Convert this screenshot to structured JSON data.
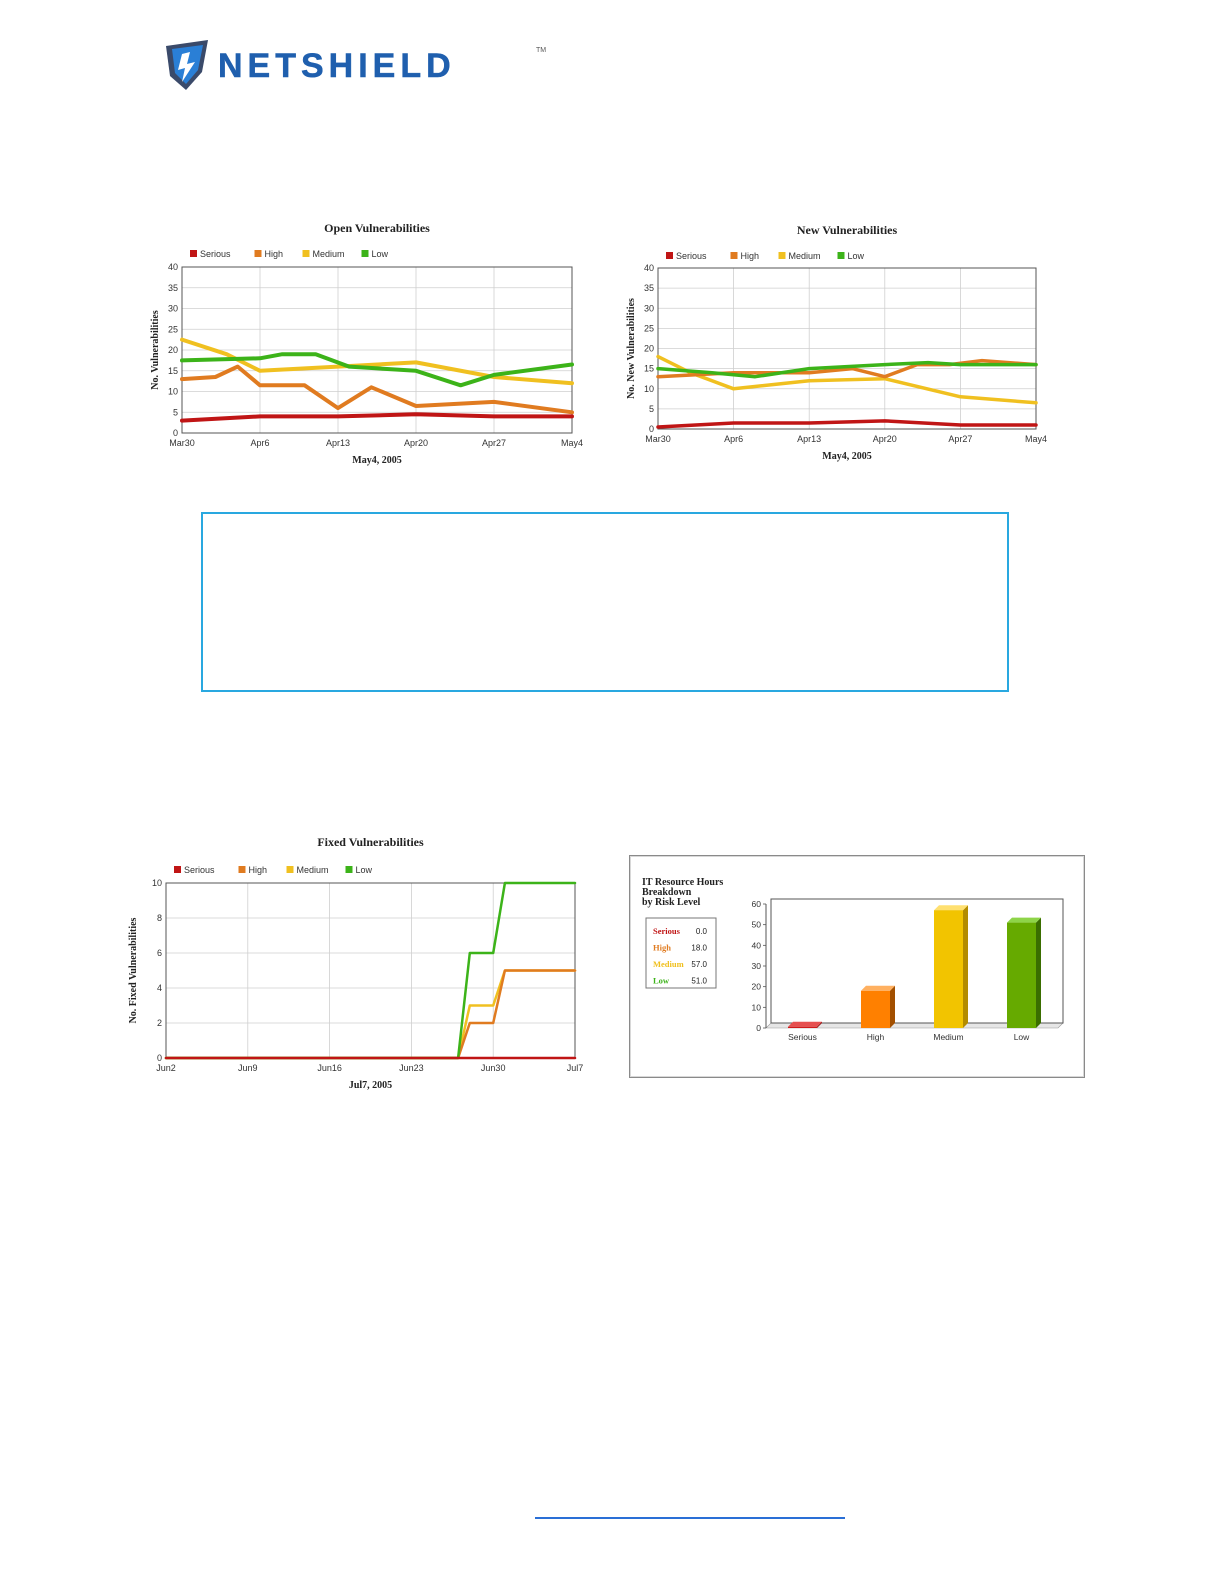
{
  "brand": {
    "name": "NETSHIELD",
    "trademark": "TM",
    "colors": {
      "dark": "#3a3f4a",
      "blue": "#1f5fae"
    }
  },
  "colors": {
    "serious": "#c01515",
    "high": "#e07b20",
    "medium": "#f0c020",
    "low": "#3cb319"
  },
  "charts": [
    {
      "type": "line",
      "title": "Open Vulnerabilities",
      "ylabel": "No. Vulnerabilities",
      "xlabel": "May4, 2005",
      "legend": [
        "Serious",
        "High",
        "Medium",
        "Low"
      ],
      "ylim": [
        0,
        40
      ],
      "yticks": [
        0,
        5,
        10,
        15,
        20,
        25,
        30,
        35,
        40
      ],
      "xlim": [
        0,
        35
      ],
      "xticks": [
        {
          "pos": 0,
          "label": "Mar30"
        },
        {
          "pos": 7,
          "label": "Apr6"
        },
        {
          "pos": 14,
          "label": "Apr13"
        },
        {
          "pos": 21,
          "label": "Apr20"
        },
        {
          "pos": 28,
          "label": "Apr27"
        },
        {
          "pos": 35,
          "label": "May4"
        }
      ],
      "series": [
        {
          "name": "Serious",
          "x": [
            0,
            7,
            14,
            21,
            28,
            35
          ],
          "y": [
            3,
            4,
            4,
            4.5,
            4,
            4
          ]
        },
        {
          "name": "High",
          "x": [
            0,
            3,
            5,
            7,
            11,
            14,
            17,
            21,
            28,
            35
          ],
          "y": [
            13,
            13.5,
            16,
            11.5,
            11.5,
            6,
            11,
            6.5,
            7.5,
            5
          ]
        },
        {
          "name": "Medium",
          "x": [
            0,
            4,
            7,
            14,
            21,
            28,
            35
          ],
          "y": [
            22.5,
            19,
            15,
            16,
            17,
            13.5,
            12
          ]
        },
        {
          "name": "Low",
          "x": [
            0,
            7,
            9,
            12,
            15,
            21,
            25,
            28,
            35
          ],
          "y": [
            17.5,
            18,
            19,
            19,
            16,
            15,
            11.5,
            14,
            16.5
          ]
        }
      ]
    },
    {
      "type": "line",
      "title": "New Vulnerabilities",
      "ylabel": "No. New Vulnerabilities",
      "xlabel": "May4, 2005",
      "legend": [
        "Serious",
        "High",
        "Medium",
        "Low"
      ],
      "ylim": [
        0,
        40
      ],
      "yticks": [
        0,
        5,
        10,
        15,
        20,
        25,
        30,
        35,
        40
      ],
      "xlim": [
        0,
        35
      ],
      "xticks": [
        {
          "pos": 0,
          "label": "Mar30"
        },
        {
          "pos": 7,
          "label": "Apr6"
        },
        {
          "pos": 14,
          "label": "Apr13"
        },
        {
          "pos": 21,
          "label": "Apr20"
        },
        {
          "pos": 28,
          "label": "Apr27"
        },
        {
          "pos": 35,
          "label": "May4"
        }
      ],
      "series": [
        {
          "name": "Serious",
          "x": [
            0,
            7,
            14,
            21,
            28,
            35
          ],
          "y": [
            0.5,
            1.5,
            1.5,
            2,
            1,
            1
          ]
        },
        {
          "name": "High",
          "x": [
            0,
            7,
            14,
            18,
            21,
            24,
            27,
            30,
            35
          ],
          "y": [
            13,
            14,
            14,
            15,
            13,
            16,
            16,
            17,
            16
          ]
        },
        {
          "name": "Medium",
          "x": [
            0,
            3,
            7,
            14,
            21,
            28,
            35
          ],
          "y": [
            18,
            14,
            10,
            12,
            12.5,
            8,
            6.5
          ]
        },
        {
          "name": "Low",
          "x": [
            0,
            5,
            9,
            14,
            21,
            25,
            28,
            35
          ],
          "y": [
            15,
            14,
            13,
            15,
            16,
            16.5,
            16,
            16
          ]
        }
      ]
    },
    {
      "type": "line",
      "title": "Fixed Vulnerabilities",
      "ylabel": "No. Fixed Vulnerabilities",
      "xlabel": "Jul7, 2005",
      "legend": [
        "Serious",
        "High",
        "Medium",
        "Low"
      ],
      "ylim": [
        0,
        10
      ],
      "yticks": [
        0,
        2,
        4,
        6,
        8,
        10
      ],
      "xlim": [
        0,
        35
      ],
      "xticks": [
        {
          "pos": 0,
          "label": "Jun2"
        },
        {
          "pos": 7,
          "label": "Jun9"
        },
        {
          "pos": 14,
          "label": "Jun16"
        },
        {
          "pos": 21,
          "label": "Jun23"
        },
        {
          "pos": 28,
          "label": "Jun30"
        },
        {
          "pos": 35,
          "label": "Jul7"
        }
      ],
      "series": [
        {
          "name": "Serious",
          "x": [
            0,
            35
          ],
          "y": [
            0,
            0
          ]
        },
        {
          "name": "High",
          "x": [
            0,
            25,
            26,
            28,
            29,
            35
          ],
          "y": [
            0,
            0,
            2,
            2,
            5,
            5
          ]
        },
        {
          "name": "Medium",
          "x": [
            0,
            25,
            26,
            28,
            29,
            35
          ],
          "y": [
            0,
            0,
            3,
            3,
            5,
            5
          ]
        },
        {
          "name": "Low",
          "x": [
            0,
            25,
            26,
            28,
            29,
            35
          ],
          "y": [
            0,
            0,
            6,
            6,
            10,
            10
          ]
        }
      ]
    },
    {
      "type": "bar",
      "title": "IT Resource Hours Breakdown by Risk Level",
      "title_lines": [
        "IT Resource Hours",
        "Breakdown",
        "by Risk Level"
      ],
      "categories": [
        "Serious",
        "High",
        "Medium",
        "Low"
      ],
      "values": [
        0.0,
        18.0,
        57.0,
        51.0
      ],
      "value_labels": [
        "0.0",
        "18.0",
        "57.0",
        "51.0"
      ],
      "ylim": [
        0,
        60
      ],
      "yticks": [
        0,
        10,
        20,
        30,
        40,
        50,
        60
      ]
    }
  ]
}
